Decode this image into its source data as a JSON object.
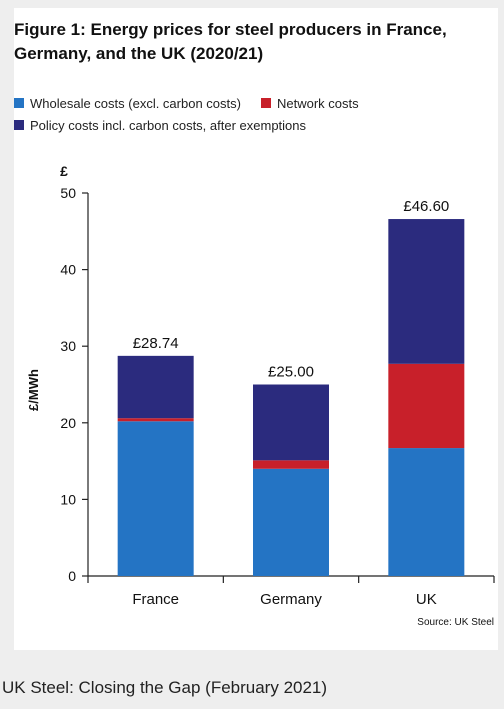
{
  "figure": {
    "title": "Figure 1: Energy prices for steel producers in France, Germany, and the UK (2020/21)",
    "source": "Source: UK Steel"
  },
  "caption": "UK Steel: Closing the Gap (February 2021)",
  "colors": {
    "wholesale": "#2474c4",
    "network": "#c8202a",
    "policy": "#2b2b7e"
  },
  "chart_data": {
    "type": "bar",
    "stacked": true,
    "title": "Figure 1: Energy prices for steel producers in France, Germany, and the UK (2020/21)",
    "categories": [
      "France",
      "Germany",
      "UK"
    ],
    "series": [
      {
        "name": "Wholesale costs (excl. carbon costs)",
        "color_key": "wholesale",
        "values": [
          20.2,
          14.0,
          16.7
        ]
      },
      {
        "name": "Network costs",
        "color_key": "network",
        "values": [
          0.4,
          1.1,
          11.0
        ]
      },
      {
        "name": "Policy costs incl. carbon costs, after exemptions",
        "color_key": "policy",
        "values": [
          8.14,
          9.9,
          18.9
        ]
      }
    ],
    "totals": [
      "£28.74",
      "£25.00",
      "£46.60"
    ],
    "ylabel": "£/MWh",
    "yunit": "£",
    "ylim": [
      0,
      50
    ],
    "yticks": [
      "0",
      "10",
      "20",
      "30",
      "40",
      "50"
    ],
    "legend_position": "top-left",
    "grid": false
  }
}
